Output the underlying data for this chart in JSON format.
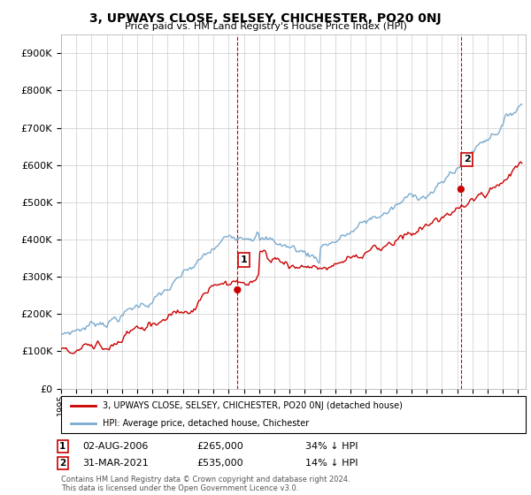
{
  "title": "3, UPWAYS CLOSE, SELSEY, CHICHESTER, PO20 0NJ",
  "subtitle": "Price paid vs. HM Land Registry's House Price Index (HPI)",
  "ylabel_ticks": [
    "£0",
    "£100K",
    "£200K",
    "£300K",
    "£400K",
    "£500K",
    "£600K",
    "£700K",
    "£800K",
    "£900K"
  ],
  "ytick_values": [
    0,
    100000,
    200000,
    300000,
    400000,
    500000,
    600000,
    700000,
    800000,
    900000
  ],
  "ylim": [
    0,
    950000
  ],
  "xlim_start": 1995.0,
  "xlim_end": 2025.5,
  "sale1_x": 2006.58,
  "sale1_y": 265000,
  "sale2_x": 2021.25,
  "sale2_y": 535000,
  "sale1_date": "02-AUG-2006",
  "sale1_price": "£265,000",
  "sale1_hpi": "34% ↓ HPI",
  "sale2_date": "31-MAR-2021",
  "sale2_price": "£535,000",
  "sale2_hpi": "14% ↓ HPI",
  "red_line_color": "#cc0000",
  "blue_line_color": "#7aabcf",
  "sale_dot_color": "#cc0000",
  "vline_color": "#cc0000",
  "grid_color": "#cccccc",
  "bg_color": "#ffffff",
  "legend_line1": "3, UPWAYS CLOSE, SELSEY, CHICHESTER, PO20 0NJ (detached house)",
  "legend_line2": "HPI: Average price, detached house, Chichester",
  "footnote": "Contains HM Land Registry data © Crown copyright and database right 2024.\nThis data is licensed under the Open Government Licence v3.0.",
  "xtick_years": [
    1995,
    1996,
    1997,
    1998,
    1999,
    2000,
    2001,
    2002,
    2003,
    2004,
    2005,
    2006,
    2007,
    2008,
    2009,
    2010,
    2011,
    2012,
    2013,
    2014,
    2015,
    2016,
    2017,
    2018,
    2019,
    2020,
    2021,
    2022,
    2023,
    2024,
    2025
  ]
}
